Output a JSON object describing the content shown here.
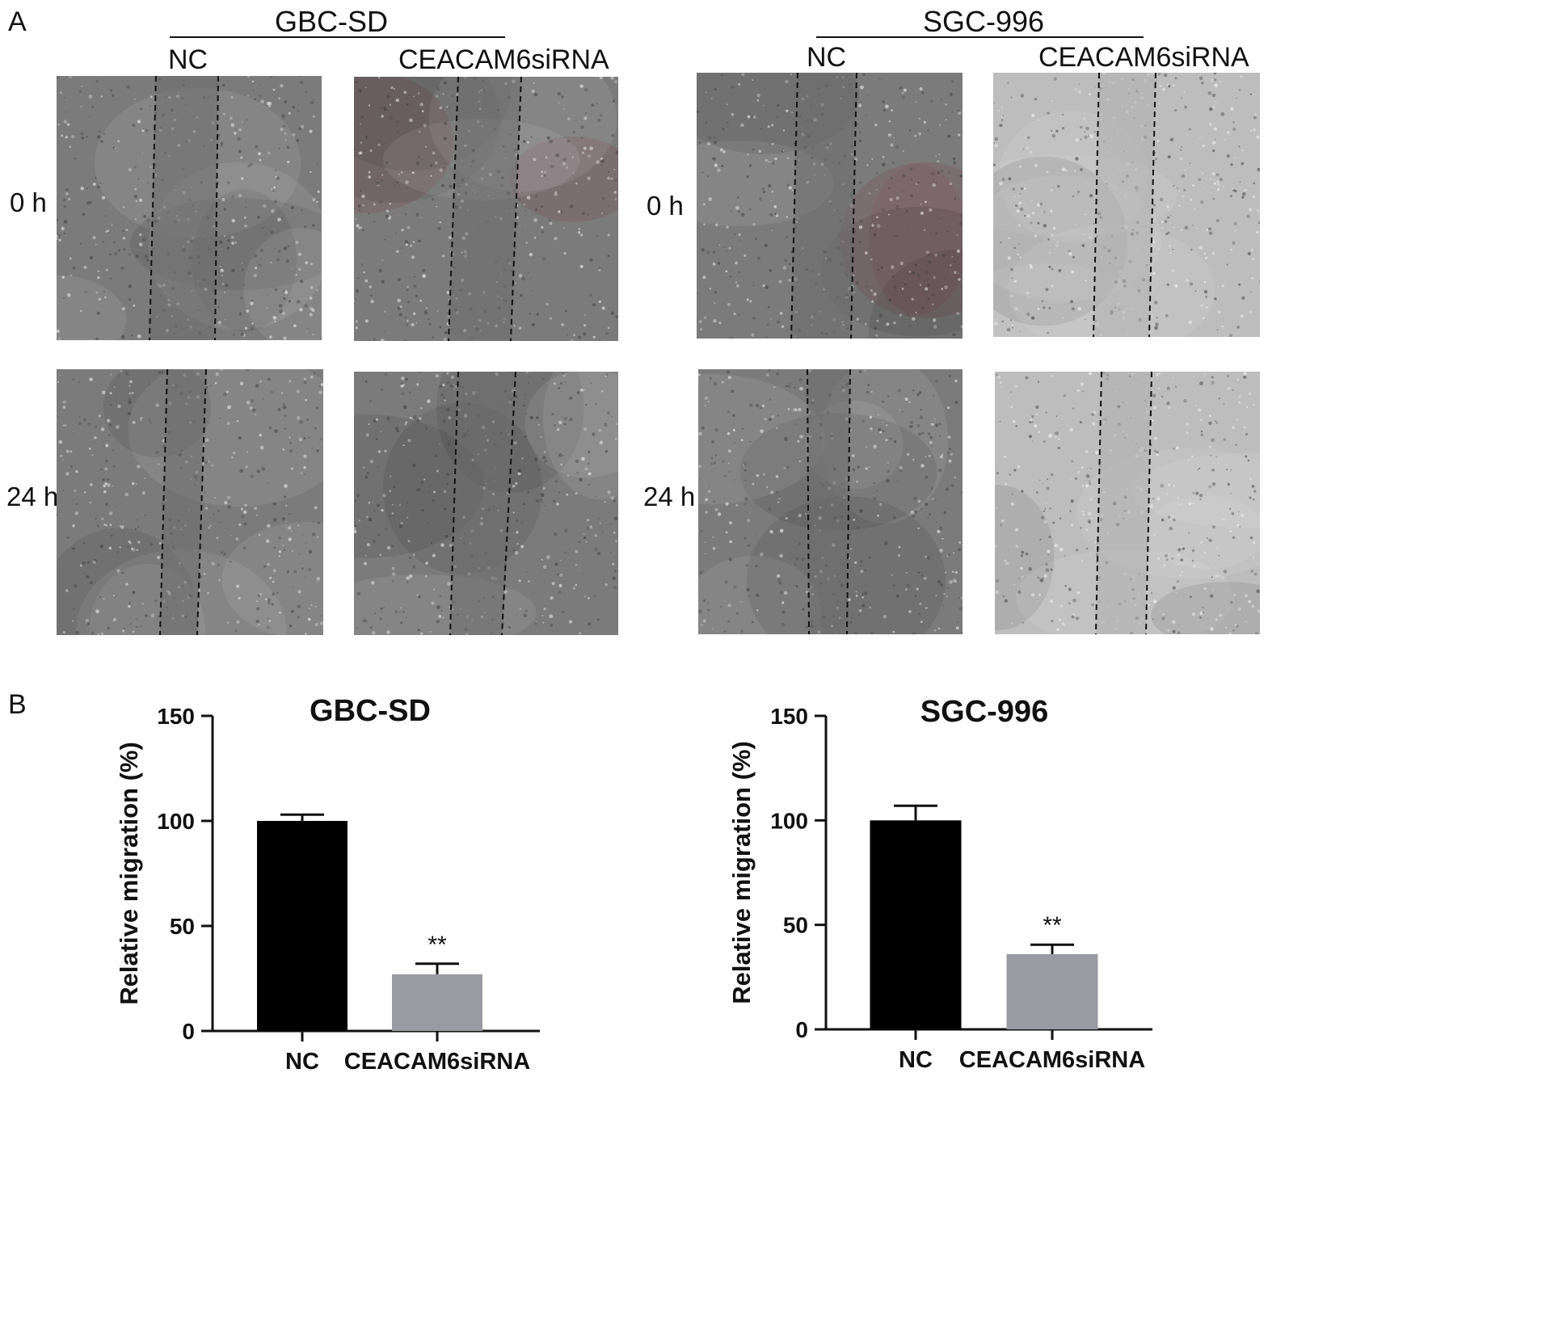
{
  "panel_a": {
    "letter": "A",
    "groups": [
      {
        "title": "GBC-SD",
        "columns": [
          "NC",
          "CEACAM6siRNA"
        ]
      },
      {
        "title": "SGC-996",
        "columns": [
          "NC",
          "CEACAM6siRNA"
        ]
      }
    ],
    "rows": [
      "0 h",
      "24 h"
    ],
    "colors": {
      "micro_gray": "#7b7b7b",
      "micro_light": "#bdbdbd",
      "micro_pink": "#7d5f66"
    }
  },
  "panel_b": {
    "letter": "B"
  },
  "chart_data": [
    {
      "type": "bar",
      "title": "GBC-SD",
      "ylabel": "Relative migration (%)",
      "categories": [
        "NC",
        "CEACAM6siRNA"
      ],
      "values": [
        100,
        27
      ],
      "errors": [
        3,
        5
      ],
      "annotations": [
        "",
        "**"
      ],
      "bar_colors": [
        "#000000",
        "#9a9aa2"
      ],
      "ylim": [
        0,
        150
      ],
      "yticks": [
        0,
        50,
        100,
        150
      ]
    },
    {
      "type": "bar",
      "title": "SGC-996",
      "ylabel": "Relative migration (%)",
      "categories": [
        "NC",
        "CEACAM6siRNA"
      ],
      "values": [
        100,
        36
      ],
      "errors": [
        7,
        4.5
      ],
      "annotations": [
        "",
        "**"
      ],
      "bar_colors": [
        "#000000",
        "#9a9aa2"
      ],
      "ylim": [
        0,
        150
      ],
      "yticks": [
        0,
        50,
        100,
        150
      ]
    }
  ]
}
